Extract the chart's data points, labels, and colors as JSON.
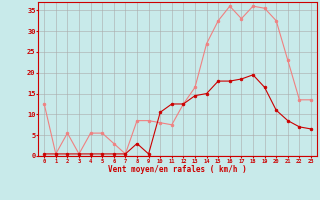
{
  "x": [
    0,
    1,
    2,
    3,
    4,
    5,
    6,
    7,
    8,
    9,
    10,
    11,
    12,
    13,
    14,
    15,
    16,
    17,
    18,
    19,
    20,
    21,
    22,
    23
  ],
  "rafales": [
    12.5,
    0.5,
    5.5,
    0.5,
    5.5,
    5.5,
    3.0,
    0.5,
    8.5,
    8.5,
    8.0,
    7.5,
    12.5,
    16.5,
    27.0,
    32.5,
    36.0,
    33.0,
    36.0,
    35.5,
    32.5,
    23.0,
    13.5,
    13.5
  ],
  "moyen": [
    0.5,
    0.5,
    0.5,
    0.5,
    0.5,
    0.5,
    0.5,
    0.5,
    3.0,
    0.5,
    10.5,
    12.5,
    12.5,
    14.5,
    15.0,
    18.0,
    18.0,
    18.5,
    19.5,
    16.5,
    11.0,
    8.5,
    7.0,
    6.5
  ],
  "color_rafales": "#f08080",
  "color_moyen": "#cc0000",
  "bg_color": "#c8eaea",
  "grid_color": "#aaaaaa",
  "xlabel": "Vent moyen/en rafales ( km/h )",
  "ylim": [
    0,
    37
  ],
  "yticks": [
    0,
    5,
    10,
    15,
    20,
    25,
    30,
    35
  ],
  "xlim": [
    -0.5,
    23.5
  ],
  "marker_size": 2.0,
  "linewidth": 0.8
}
